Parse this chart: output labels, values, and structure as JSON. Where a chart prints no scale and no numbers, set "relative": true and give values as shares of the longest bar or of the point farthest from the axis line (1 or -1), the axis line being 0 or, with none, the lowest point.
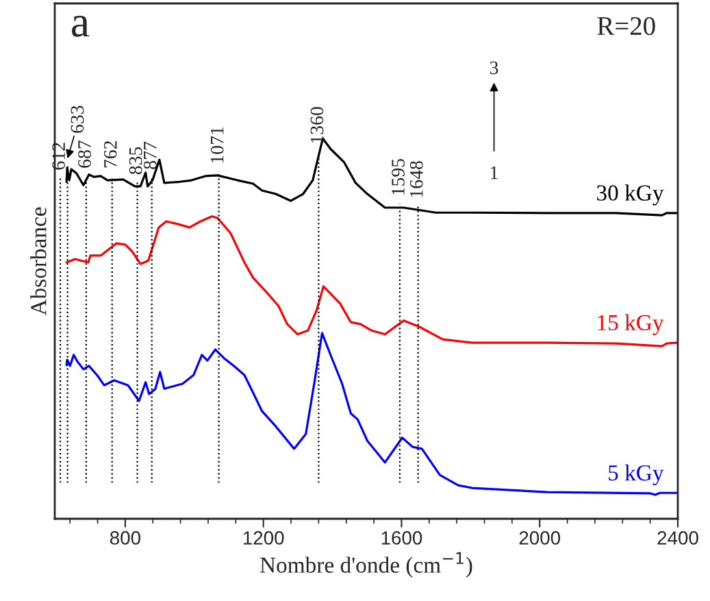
{
  "chart_data": {
    "type": "line",
    "relative": true,
    "xlabel": "Nombre d'onde (cm$^{−1}$)",
    "ylabel": "Absorbance",
    "xlim": [
      596,
      2400
    ],
    "xticks": [
      {
        "value": 640,
        "label": null
      },
      {
        "value": 720,
        "label": null
      },
      800,
      {
        "value": 880,
        "label": null
      },
      {
        "value": 960,
        "label": null
      },
      {
        "value": 1040,
        "label": null
      },
      {
        "value": 1120,
        "label": null
      },
      1200,
      {
        "value": 1280,
        "label": null
      },
      {
        "value": 1360,
        "label": null
      },
      {
        "value": 1440,
        "label": null
      },
      {
        "value": 1520,
        "label": null
      },
      1600,
      {
        "value": 1680,
        "label": null
      },
      {
        "value": 1760,
        "label": null
      },
      {
        "value": 1840,
        "label": null
      },
      {
        "value": 1920,
        "label": null
      },
      2000,
      {
        "value": 2080,
        "label": null
      },
      {
        "value": 2160,
        "label": null
      },
      {
        "value": 2240,
        "label": null
      },
      {
        "value": 2320,
        "label": null
      },
      2400
    ],
    "tick_labels": "x",
    "legend": false,
    "grid": false,
    "marker": "none",
    "line_style": "solid",
    "series": [
      {
        "name": "30 kGy",
        "color": "#000000",
        "x": [
          630,
          632,
          638,
          644,
          659,
          679,
          695,
          709,
          729,
          749,
          794,
          828,
          844,
          859,
          865,
          879,
          899,
          913,
          958,
          992,
          1032,
          1067,
          1125,
          1170,
          1196,
          1236,
          1279,
          1315,
          1343,
          1362,
          1372,
          1394,
          1434,
          1467,
          1501,
          1552,
          1606,
          1699,
          1804,
          2022,
          2220,
          2354,
          2368,
          2398
        ],
        "values": [
          0.886,
          0.923,
          0.89,
          0.919,
          0.908,
          0.877,
          0.905,
          0.899,
          0.901,
          0.89,
          0.892,
          0.874,
          0.874,
          0.91,
          0.874,
          0.89,
          0.944,
          0.883,
          0.886,
          0.89,
          0.901,
          0.903,
          0.89,
          0.881,
          0.863,
          0.854,
          0.836,
          0.854,
          0.89,
          0.962,
          1.0,
          0.973,
          0.937,
          0.883,
          0.854,
          0.818,
          0.818,
          0.805,
          0.805,
          0.804,
          0.804,
          0.798,
          0.804,
          0.804
        ]
      },
      {
        "name": "15 kGy",
        "color": "#ff0000",
        "x": [
          630,
          655,
          693,
          699,
          729,
          774,
          800,
          820,
          844,
          867,
          897,
          919,
          952,
          986,
          1018,
          1051,
          1067,
          1105,
          1145,
          1170,
          1210,
          1244,
          1269,
          1299,
          1329,
          1354,
          1374,
          1422,
          1453,
          1481,
          1513,
          1552,
          1606,
          1651,
          1719,
          1804,
          2022,
          2220,
          2354,
          2368,
          2398
        ],
        "values": [
          0.674,
          0.683,
          0.674,
          0.692,
          0.692,
          0.724,
          0.721,
          0.703,
          0.67,
          0.679,
          0.766,
          0.782,
          0.775,
          0.766,
          0.782,
          0.795,
          0.791,
          0.751,
          0.674,
          0.634,
          0.595,
          0.559,
          0.512,
          0.485,
          0.495,
          0.548,
          0.611,
          0.566,
          0.517,
          0.512,
          0.495,
          0.485,
          0.521,
          0.505,
          0.472,
          0.463,
          0.463,
          0.461,
          0.454,
          0.461,
          0.463
        ]
      },
      {
        "name": "5 kGy",
        "color": "#0000ff",
        "x": [
          630,
          632,
          640,
          651,
          661,
          679,
          695,
          719,
          739,
          768,
          808,
          840,
          859,
          869,
          887,
          901,
          913,
          966,
          998,
          1022,
          1038,
          1061,
          1085,
          1117,
          1145,
          1170,
          1196,
          1236,
          1289,
          1323,
          1348,
          1370,
          1394,
          1428,
          1453,
          1473,
          1501,
          1552,
          1602,
          1632,
          1659,
          1711,
          1764,
          1804,
          2022,
          2319,
          2335,
          2348,
          2398
        ],
        "values": [
          0.404,
          0.418,
          0.402,
          0.431,
          0.414,
          0.393,
          0.402,
          0.377,
          0.351,
          0.364,
          0.351,
          0.31,
          0.359,
          0.328,
          0.341,
          0.386,
          0.342,
          0.355,
          0.378,
          0.431,
          0.416,
          0.445,
          0.423,
          0.4,
          0.378,
          0.332,
          0.283,
          0.243,
          0.184,
          0.223,
          0.36,
          0.488,
          0.432,
          0.355,
          0.277,
          0.261,
          0.205,
          0.148,
          0.213,
          0.189,
          0.184,
          0.115,
          0.088,
          0.081,
          0.07,
          0.067,
          0.063,
          0.068,
          0.068
        ]
      }
    ],
    "ref_lines": [
      {
        "axis": "x",
        "value": 612,
        "label": "612",
        "line_style": "dotted"
      },
      {
        "axis": "x",
        "value": 633,
        "label": "633",
        "line_style": "dotted"
      },
      {
        "axis": "x",
        "value": 687,
        "label": "687",
        "line_style": "dotted"
      },
      {
        "axis": "x",
        "value": 762,
        "label": "762",
        "line_style": "dotted"
      },
      {
        "axis": "x",
        "value": 835,
        "label": "835",
        "line_style": "dotted"
      },
      {
        "axis": "x",
        "value": 877,
        "label": "877",
        "line_style": "dotted"
      },
      {
        "axis": "x",
        "value": 1071,
        "label": "1071",
        "line_style": "dotted"
      },
      {
        "axis": "x",
        "value": 1360,
        "label": "1360",
        "line_style": "dotted"
      },
      {
        "axis": "x",
        "value": 1595,
        "label": "1595",
        "line_style": "dotted"
      },
      {
        "axis": "x",
        "value": 1648,
        "label": "1648",
        "line_style": "dotted"
      }
    ],
    "annotations": [
      "a",
      "R=20",
      "3",
      "1"
    ]
  }
}
